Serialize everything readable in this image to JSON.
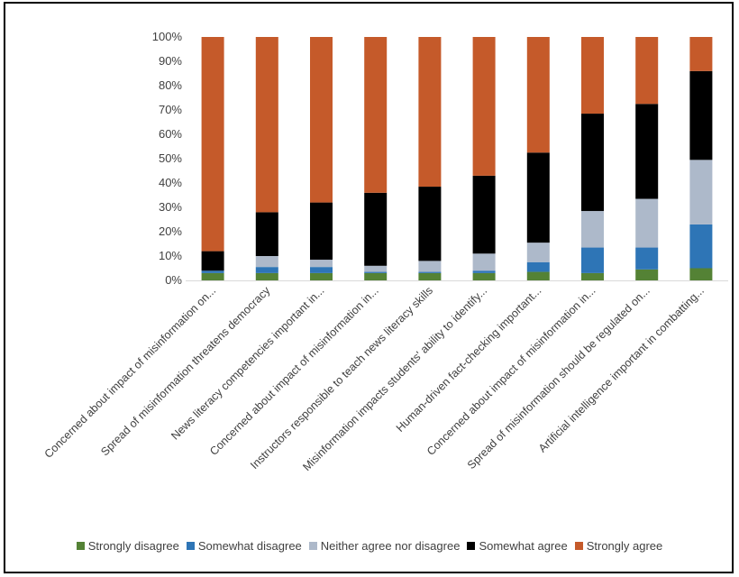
{
  "chart_data": {
    "type": "bar",
    "stacked": true,
    "percent": true,
    "title": "",
    "xlabel": "",
    "ylabel": "",
    "ylim": [
      0,
      100
    ],
    "yticks": [
      "0%",
      "10%",
      "20%",
      "30%",
      "40%",
      "50%",
      "60%",
      "70%",
      "80%",
      "90%",
      "100%"
    ],
    "grid": false,
    "legend_position": "bottom",
    "categories": [
      "Concerned about impact of misinformation on...",
      "Spread of misinformation threatens democracy",
      "News literacy competencies important in...",
      "Concerned about impact of misinformation in...",
      "Instructors responsible to teach news literacy skills",
      "Misinformation impacts students' ability to identify...",
      "Human-driven fact-checking important...",
      "Concerned about impact of misinformation in...",
      "Spread of misinformation should be regulated on...",
      "Artificial intelligence important in combatting..."
    ],
    "series": [
      {
        "name": "Strongly disagree",
        "color": "#548235",
        "values": [
          3,
          3,
          3,
          3,
          3,
          3,
          3.5,
          3,
          4.5,
          5
        ]
      },
      {
        "name": "Somewhat disagree",
        "color": "#2e75b6",
        "values": [
          1,
          2.5,
          2.5,
          0.5,
          0.5,
          1,
          4,
          10.5,
          9,
          18
        ]
      },
      {
        "name": "Neither agree nor disagree",
        "color": "#adb9ca",
        "values": [
          0,
          4.5,
          3,
          2.5,
          4.5,
          7,
          8,
          15,
          20,
          26.5
        ]
      },
      {
        "name": "Somewhat agree",
        "color": "#000000",
        "values": [
          8,
          18,
          23.5,
          30,
          30.5,
          32,
          37,
          40,
          39,
          36.5
        ]
      },
      {
        "name": "Strongly agree",
        "color": "#c55a2a",
        "values": [
          88,
          72,
          68,
          64,
          61.5,
          57,
          47.5,
          31.5,
          27.5,
          14
        ]
      }
    ]
  }
}
